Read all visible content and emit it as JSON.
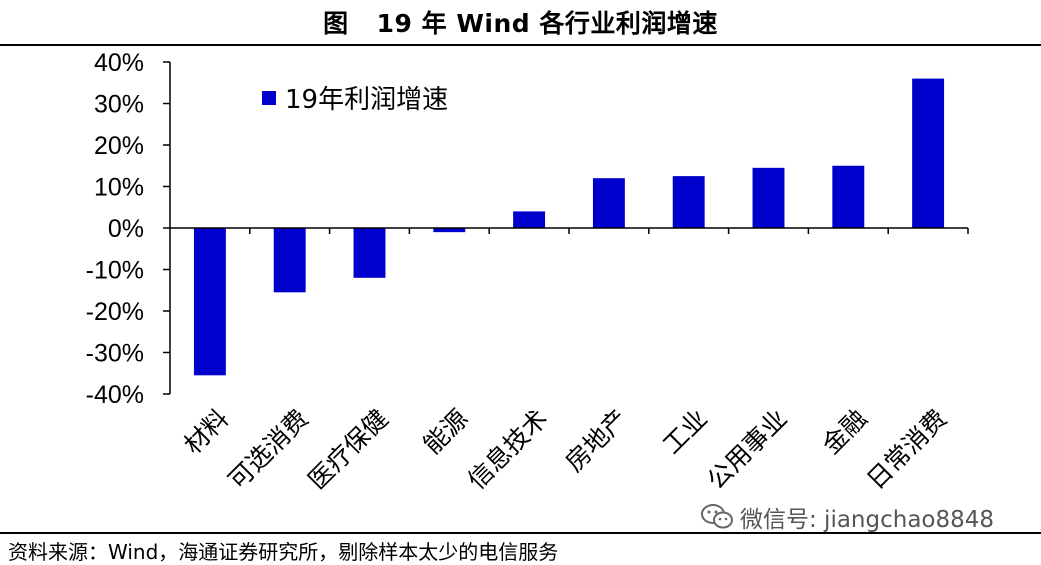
{
  "figure": {
    "prefix": "图",
    "title": "19 年 Wind 各行业利润增速"
  },
  "source_note": "资料来源：Wind，海通证券研究所，剔除样本太少的电信服务",
  "watermark": {
    "icon": "wechat-icon",
    "text": "微信号: jiangchao8848"
  },
  "chart_data": {
    "type": "bar",
    "categories": [
      "材料",
      "可选消费",
      "医疗保健",
      "能源",
      "信息技术",
      "房地产",
      "工业",
      "公用事业",
      "金融",
      "日常消费"
    ],
    "series": [
      {
        "name": "19年利润增速",
        "values": [
          -35.5,
          -15.5,
          -12,
          -1,
          4,
          12,
          12.5,
          14.5,
          15,
          36
        ],
        "color": "#0000CC"
      }
    ],
    "ylim": [
      -40,
      40
    ],
    "yticks": [
      -40,
      -30,
      -20,
      -10,
      0,
      10,
      20,
      30,
      40
    ],
    "ytick_labels": [
      "-40%",
      "-30%",
      "-20%",
      "-10%",
      "0%",
      "10%",
      "20%",
      "30%",
      "40%"
    ],
    "xlabel": "",
    "ylabel": "",
    "grid": false,
    "legend_position": "top-left"
  }
}
